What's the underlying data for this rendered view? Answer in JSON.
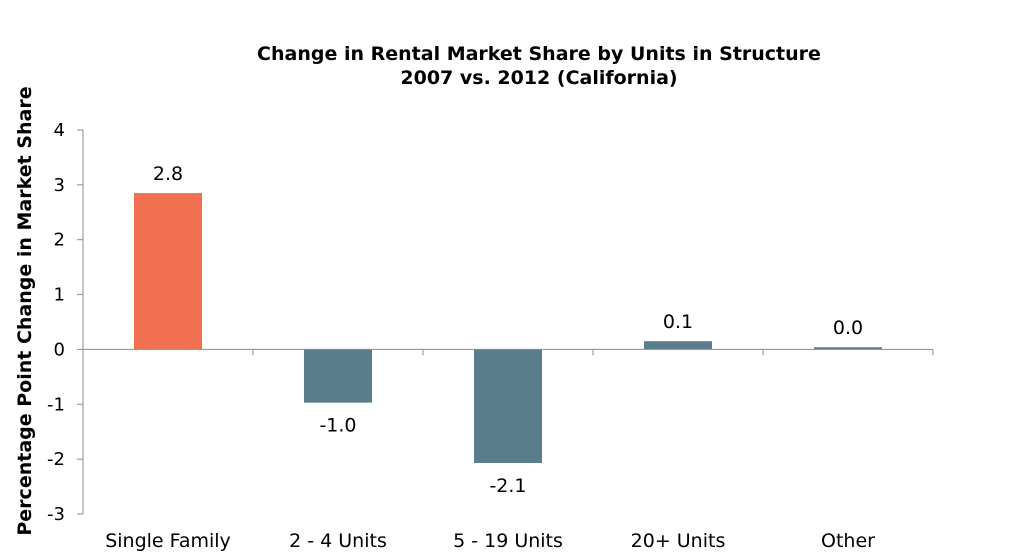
{
  "chart_data": {
    "type": "bar",
    "title": "Change in Rental Market Share by Units in Structure",
    "subtitle": "2007 vs. 2012 (California)",
    "xlabel": "",
    "ylabel": "Percentage Point Change in Market Share",
    "categories": [
      "Single Family",
      "2 - 4 Units",
      "5 - 19 Units",
      "20+ Units",
      "Other"
    ],
    "values": [
      2.85,
      -0.97,
      -2.07,
      0.15,
      0.04
    ],
    "data_labels": [
      "2.8",
      "-1.0",
      "-2.1",
      "0.1",
      "0.0"
    ],
    "ylim": [
      -3,
      4
    ],
    "yticks": [
      "4",
      "3",
      "2",
      "1",
      "0",
      "-1",
      "-2",
      "-3"
    ],
    "grid": false,
    "legend": "none",
    "colors": [
      "#f07050",
      "#5a7d8b",
      "#5a7d8b",
      "#5a7d8b",
      "#5a7d8b"
    ]
  }
}
